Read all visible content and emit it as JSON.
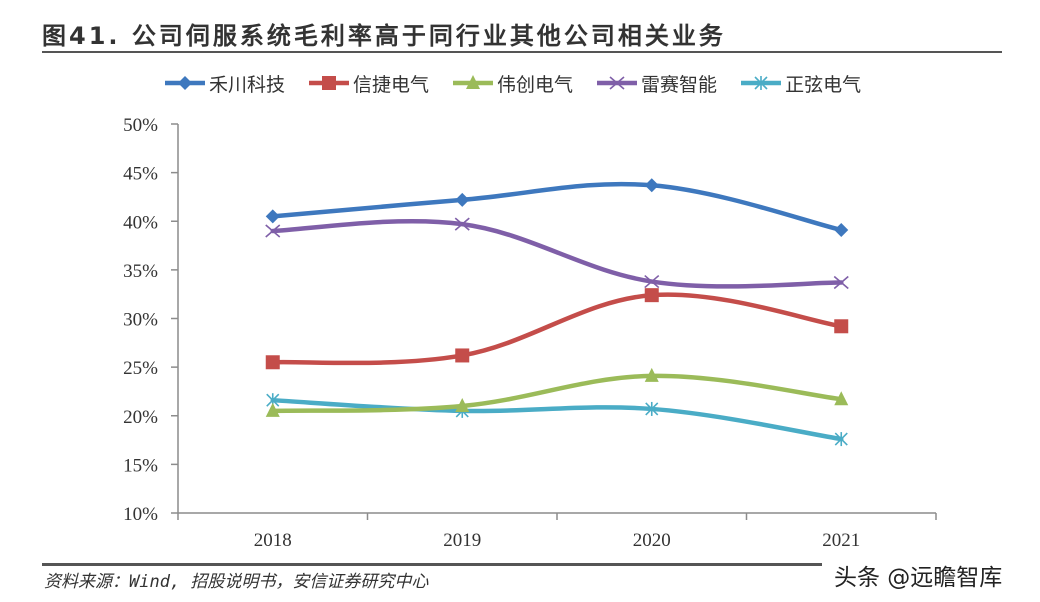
{
  "title": "图41. 公司伺服系统毛利率高于同行业其他公司相关业务",
  "source": "资料来源：Wind, 招股说明书，安信证券研究中心",
  "watermark": "头条 @远瞻智库",
  "chart_data": {
    "type": "line",
    "title": "图41. 公司伺服系统毛利率高于同行业其他公司相关业务",
    "xlabel": "",
    "ylabel": "",
    "categories": [
      "2018",
      "2019",
      "2020",
      "2021"
    ],
    "ylim": [
      0.1,
      0.5
    ],
    "yticks": [
      0.1,
      0.15,
      0.2,
      0.25,
      0.3,
      0.35,
      0.4,
      0.45,
      0.5
    ],
    "ytick_labels": [
      "10%",
      "15%",
      "20%",
      "25%",
      "30%",
      "35%",
      "40%",
      "45%",
      "50%"
    ],
    "grid": false,
    "legend_position": "top",
    "smooth": true,
    "series": [
      {
        "name": "禾川科技",
        "color": "#3E78BE",
        "marker": "diamond",
        "values": [
          0.405,
          0.422,
          0.437,
          0.391
        ]
      },
      {
        "name": "信捷电气",
        "color": "#C44D4A",
        "marker": "square",
        "values": [
          0.255,
          0.262,
          0.324,
          0.292
        ]
      },
      {
        "name": "伟创电气",
        "color": "#9BBB59",
        "marker": "triangle",
        "values": [
          0.205,
          0.21,
          0.241,
          0.217
        ]
      },
      {
        "name": "雷赛智能",
        "color": "#7F5FA8",
        "marker": "x",
        "values": [
          0.39,
          0.397,
          0.338,
          0.337
        ]
      },
      {
        "name": "正弦电气",
        "color": "#4AACC6",
        "marker": "star",
        "values": [
          0.216,
          0.205,
          0.207,
          0.176
        ]
      }
    ]
  }
}
